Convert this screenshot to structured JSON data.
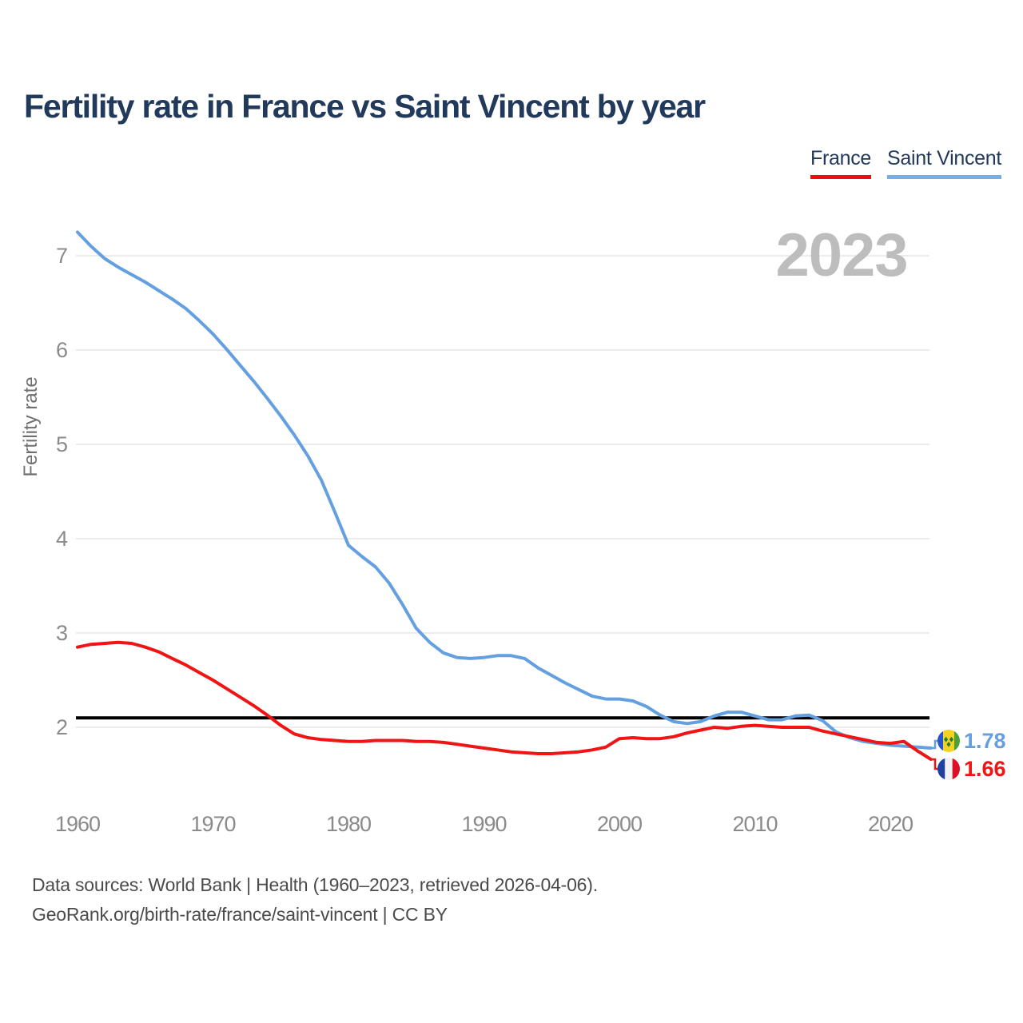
{
  "title": "Fertility rate in France vs Saint Vincent by year",
  "watermark": "2023",
  "legend": [
    {
      "label": "France",
      "color": "#f40b0b"
    },
    {
      "label": "Saint Vincent",
      "color": "#74aee4"
    }
  ],
  "footer": {
    "line1": "Data sources: World Bank | Health (1960–2023, retrieved 2026-04-06).",
    "line2": "GeoRank.org/birth-rate/france/saint-vincent | CC BY"
  },
  "colors": {
    "title_text": "#21395b",
    "france_line": "#f11414",
    "saint_vincent_line": "#64a0e0",
    "reference_line": "#000000",
    "gridline": "#ececec",
    "tick_text": "#8a8a8a",
    "axis_label_text": "#6f6f6f",
    "watermark_text": "#bdbdbd",
    "footer_text": "#4b4b4b"
  },
  "chart_data": {
    "type": "line",
    "title": "Fertility rate in France vs Saint Vincent by year",
    "xlabel": "",
    "ylabel": "Fertility rate",
    "xlim": [
      1960,
      2023
    ],
    "ylim": [
      1.55,
      7.45
    ],
    "grid": true,
    "legend_position": "top-right",
    "yticks": [
      2,
      3,
      4,
      5,
      6,
      7
    ],
    "xticks": [
      1960,
      1970,
      1980,
      1990,
      2000,
      2010,
      2020
    ],
    "reference_line": {
      "value": 2.1,
      "color": "#000000"
    },
    "x": [
      1960,
      1961,
      1962,
      1963,
      1964,
      1965,
      1966,
      1967,
      1968,
      1969,
      1970,
      1971,
      1972,
      1973,
      1974,
      1975,
      1976,
      1977,
      1978,
      1979,
      1980,
      1981,
      1982,
      1983,
      1984,
      1985,
      1986,
      1987,
      1988,
      1989,
      1990,
      1991,
      1992,
      1993,
      1994,
      1995,
      1996,
      1997,
      1998,
      1999,
      2000,
      2001,
      2002,
      2003,
      2004,
      2005,
      2006,
      2007,
      2008,
      2009,
      2010,
      2011,
      2012,
      2013,
      2014,
      2015,
      2016,
      2017,
      2018,
      2019,
      2020,
      2021,
      2022,
      2023
    ],
    "series": [
      {
        "name": "France",
        "color": "#f11414",
        "end_label": "1.66",
        "flag": "france-flag-icon",
        "flag_colors": [
          "#20419f",
          "#f2f2f2",
          "#dc1126"
        ],
        "values": [
          2.85,
          2.88,
          2.89,
          2.9,
          2.89,
          2.85,
          2.8,
          2.73,
          2.66,
          2.58,
          2.5,
          2.41,
          2.32,
          2.23,
          2.13,
          2.02,
          1.93,
          1.89,
          1.87,
          1.86,
          1.85,
          1.85,
          1.86,
          1.86,
          1.86,
          1.85,
          1.85,
          1.84,
          1.82,
          1.8,
          1.78,
          1.76,
          1.74,
          1.73,
          1.72,
          1.72,
          1.73,
          1.74,
          1.76,
          1.79,
          1.88,
          1.89,
          1.88,
          1.88,
          1.9,
          1.94,
          1.97,
          2.0,
          1.99,
          2.01,
          2.02,
          2.01,
          2.0,
          2.0,
          2.0,
          1.96,
          1.93,
          1.9,
          1.87,
          1.84,
          1.83,
          1.85,
          1.75,
          1.66
        ]
      },
      {
        "name": "Saint Vincent",
        "color": "#64a0e0",
        "end_label": "1.78",
        "flag": "saint-vincent-flag-icon",
        "flag_colors": [
          "#2656c9",
          "#f4d123",
          "#4da03a",
          "#1a7f38"
        ],
        "values": [
          7.25,
          7.1,
          6.97,
          6.88,
          6.8,
          6.72,
          6.63,
          6.54,
          6.44,
          6.31,
          6.17,
          6.01,
          5.84,
          5.67,
          5.49,
          5.3,
          5.1,
          4.88,
          4.62,
          4.28,
          3.93,
          3.81,
          3.7,
          3.53,
          3.3,
          3.05,
          2.9,
          2.79,
          2.74,
          2.73,
          2.74,
          2.76,
          2.76,
          2.73,
          2.63,
          2.55,
          2.47,
          2.4,
          2.33,
          2.3,
          2.3,
          2.28,
          2.22,
          2.13,
          2.06,
          2.04,
          2.06,
          2.12,
          2.16,
          2.16,
          2.12,
          2.08,
          2.08,
          2.12,
          2.13,
          2.07,
          1.95,
          1.89,
          1.85,
          1.83,
          1.81,
          1.8,
          1.79,
          1.78
        ]
      }
    ]
  }
}
